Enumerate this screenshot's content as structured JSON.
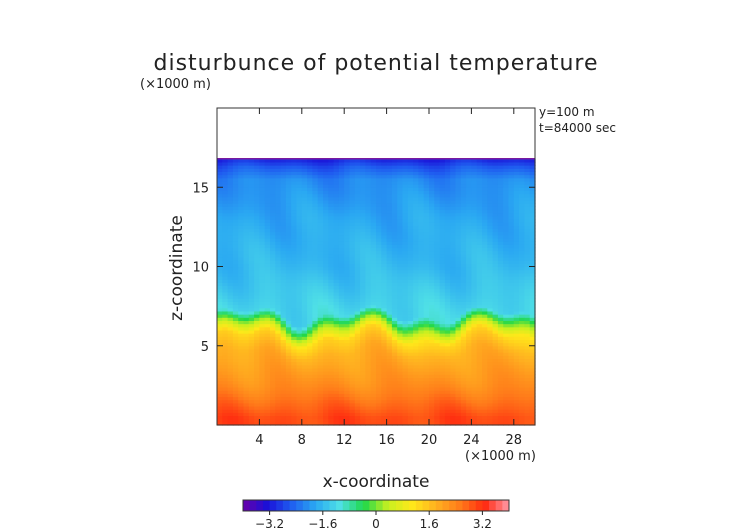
{
  "chart_data": {
    "type": "heatmap",
    "title": "disturbunce of potential temperature",
    "scale_note": "(×1000 m)",
    "info": [
      "y=100 m",
      "t=84000 sec"
    ],
    "xlabel": "x-coordinate",
    "ylabel": "z-coordinate",
    "x_unit_note": "(×1000 m)",
    "xlim": [
      0,
      30
    ],
    "ylim": [
      0,
      20
    ],
    "x_ticks": [
      4,
      8,
      12,
      16,
      20,
      24,
      28
    ],
    "y_ticks": [
      5,
      10,
      15
    ],
    "domain_top_z": 16.8,
    "colorbar": {
      "range": [
        -4,
        4
      ],
      "ticks": [
        -3.2,
        -1.6,
        0,
        1.6,
        3.2
      ],
      "tick_labels": [
        "−3.2",
        "−1.6",
        "0",
        "1.6",
        "3.2"
      ],
      "colors": [
        "#6a00a8",
        "#1a10d8",
        "#1f5df0",
        "#2aa8f2",
        "#4fe0e6",
        "#1fd84a",
        "#c8f020",
        "#ffe81a",
        "#ffb020",
        "#ff7a1a",
        "#ff2a10",
        "#ff9aa8"
      ]
    },
    "profile_z": [
      0.5,
      2.5,
      4.5,
      5.5,
      6.3,
      7.0,
      10.0,
      13.0,
      15.5,
      16.3,
      16.8
    ],
    "profile_value": [
      3.0,
      2.3,
      1.8,
      1.3,
      0.1,
      -1.2,
      -1.6,
      -1.8,
      -2.1,
      -2.6,
      -3.1
    ]
  }
}
